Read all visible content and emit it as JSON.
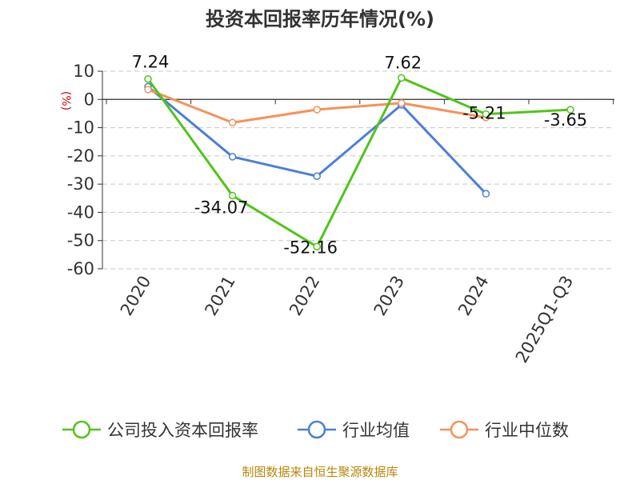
{
  "chart_data": {
    "type": "line",
    "title": "投资本回报率历年情况(%)",
    "ylabel": "(%)",
    "xlabel": "",
    "ylim": [
      -60,
      10
    ],
    "yticks": [
      10,
      0,
      -10,
      -20,
      -30,
      -40,
      -50,
      -60
    ],
    "categories": [
      "2020",
      "2021",
      "2022",
      "2023",
      "2024",
      "2025Q1-Q3"
    ],
    "grid": true,
    "legend_position": "bottom",
    "series": [
      {
        "name": "公司投入资本回报率",
        "color": "#52c41a",
        "values": [
          7.24,
          -34.07,
          -52.16,
          7.62,
          -5.21,
          -3.65
        ],
        "labels": [
          "7.24",
          "-34.07",
          "-52.16",
          "7.62",
          "-5.21",
          "-3.65"
        ]
      },
      {
        "name": "行业均值",
        "color": "#4a7fd6",
        "values": [
          4.5,
          -20.3,
          -27.2,
          -1.9,
          -33.4,
          null
        ]
      },
      {
        "name": "行业中位数",
        "color": "#f5925a",
        "values": [
          3.5,
          -8.2,
          -3.6,
          -1.3,
          -6.4,
          null
        ]
      }
    ],
    "source": "制图数据来自恒生聚源数据库"
  }
}
